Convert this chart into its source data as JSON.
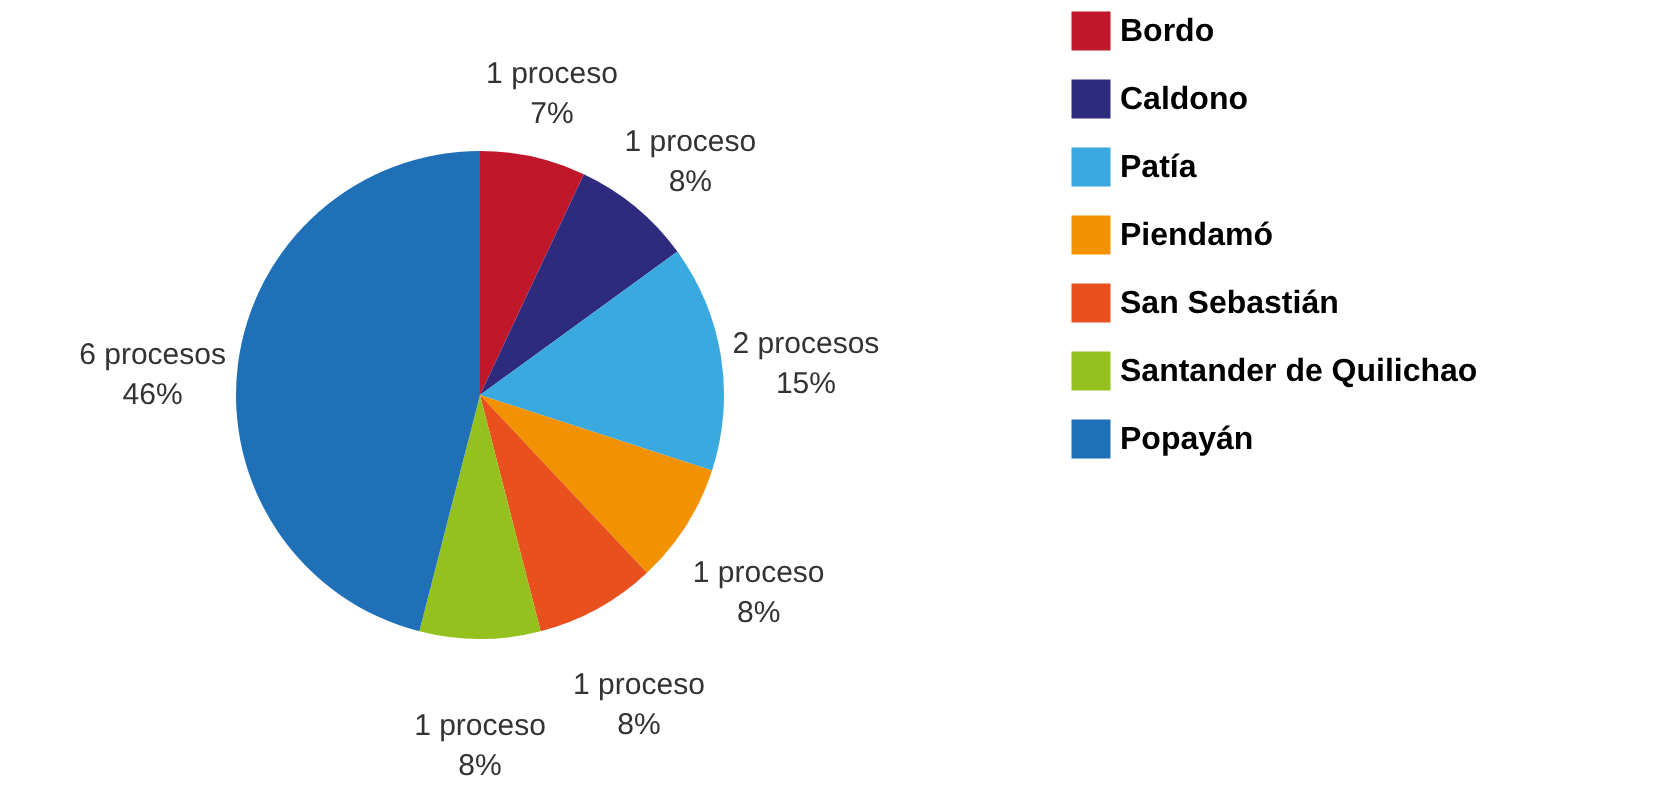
{
  "chart_data": {
    "type": "pie",
    "categories": [
      "Bordo",
      "Caldono",
      "Patía",
      "Piendamó",
      "San Sebastián",
      "Santander de Quilichao",
      "Popayán"
    ],
    "values": [
      7,
      8,
      15,
      8,
      8,
      8,
      46
    ],
    "colors": [
      "#c1172a",
      "#2e2a7e",
      "#3aa9e0",
      "#f39200",
      "#e8501e",
      "#95c11f",
      "#1f70b7"
    ],
    "value_labels": [
      "1 proceso\n7%",
      "1 proceso\n8%",
      "2 procesos\n15%",
      "1 proceso\n8%",
      "1 proceso\n8%",
      "1 proceso\n8%",
      "6 procesos\n46%"
    ],
    "legend": "right"
  }
}
